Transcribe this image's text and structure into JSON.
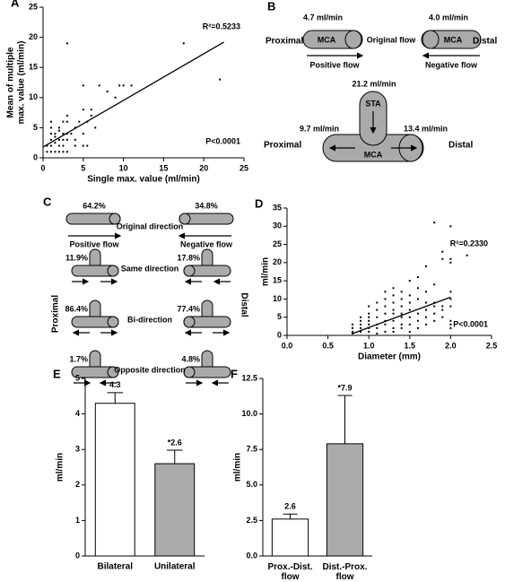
{
  "chart_data": [
    {
      "type": "scatter",
      "panel": "A",
      "xlabel": "Single max. value (ml/min)",
      "ylabel": [
        "Mean of multiple",
        "max. value (ml/min)"
      ],
      "x": [
        0.5,
        1,
        1.5,
        2,
        2.5,
        3,
        0.5,
        1,
        1.5,
        2,
        2.5,
        3,
        1,
        2,
        2.5,
        3,
        3.5,
        1,
        1.5,
        2,
        1,
        2,
        2.5,
        3,
        1,
        4,
        4.5,
        5,
        5.5,
        5,
        5,
        5,
        5.5,
        6,
        6,
        6.5,
        7,
        8,
        9,
        9.5,
        10,
        11,
        3,
        17.5,
        22,
        4,
        3,
        4,
        1.5,
        2.5
      ],
      "y": [
        1,
        1,
        1,
        1,
        1,
        1,
        2,
        2,
        2.5,
        2,
        2,
        3,
        3,
        3,
        4,
        4,
        4,
        4,
        4,
        4.5,
        5,
        5,
        6,
        6,
        6,
        5,
        6,
        2,
        2,
        4,
        8,
        12,
        6,
        8,
        7,
        5,
        12,
        11,
        10,
        12,
        12,
        12,
        19,
        19,
        13,
        2,
        7,
        3,
        3.5,
        3
      ],
      "trend_line": {
        "x": [
          0,
          22.5
        ],
        "y": [
          1.8,
          19.2
        ]
      },
      "annotations": [
        "R²=0.5233",
        "P<0.0001"
      ],
      "xlim": [
        0,
        25
      ],
      "xticks": [
        0,
        5,
        10,
        15,
        20,
        25
      ],
      "ylim": [
        0,
        25
      ],
      "yticks": [
        0,
        5,
        10,
        15,
        20,
        25
      ],
      "color": "#000000"
    },
    {
      "type": "scatter",
      "panel": "D",
      "xlabel": "Diameter (mm)",
      "ylabel": [
        "ml/min"
      ],
      "x": [
        0.8,
        0.8,
        0.8,
        0.8,
        0.9,
        0.9,
        0.9,
        0.9,
        0.9,
        1,
        1,
        1,
        1,
        1,
        1,
        1,
        1.1,
        1.1,
        1.1,
        1.1,
        1.1,
        1.1,
        1.2,
        1.2,
        1.2,
        1.2,
        1.2,
        1.2,
        1.2,
        1.3,
        1.3,
        1.3,
        1.3,
        1.3,
        1.3,
        1.3,
        1.3,
        1.4,
        1.4,
        1.4,
        1.4,
        1.4,
        1.4,
        1.4,
        1.5,
        1.5,
        1.5,
        1.5,
        1.5,
        1.5,
        1.5,
        1.6,
        1.6,
        1.6,
        1.6,
        1.6,
        1.6,
        1.7,
        1.7,
        1.7,
        1.7,
        1.7,
        1.7,
        1.8,
        1.8,
        1.8,
        1.8,
        1.8,
        1.8,
        1.9,
        1.9,
        1.9,
        1.9,
        1.9,
        2,
        2,
        2,
        2,
        2,
        2,
        2,
        2,
        2,
        2.2
      ],
      "y": [
        0.5,
        1,
        2,
        3,
        1,
        2,
        3,
        4,
        5,
        1,
        2,
        3,
        4,
        5,
        6,
        8,
        0.5,
        2,
        3,
        5,
        7,
        9,
        1,
        3,
        4,
        6,
        8,
        10,
        12,
        1,
        2,
        4,
        6,
        7,
        9,
        11,
        13,
        2,
        3,
        5,
        6,
        8,
        10,
        12,
        1,
        3,
        5,
        7,
        9,
        11,
        15,
        2,
        4,
        6,
        10,
        13,
        16,
        3,
        5,
        7,
        9,
        12,
        19,
        4,
        6,
        8,
        9,
        14,
        31,
        5,
        7,
        8,
        21,
        23,
        2,
        3,
        4,
        8,
        10,
        12,
        20,
        21,
        30,
        22
      ],
      "trend_line": {
        "x": [
          0.8,
          2.0
        ],
        "y": [
          0.5,
          10.5
        ]
      },
      "annotations": [
        "R²=0.2330",
        "P<0.0001"
      ],
      "xlim": [
        0,
        2.5
      ],
      "xticks": [
        {
          "value": 0,
          "label": "0.0"
        },
        0.5,
        {
          "value": 1,
          "label": "1.0"
        },
        1.5,
        {
          "value": 2,
          "label": "2.0"
        },
        2.5
      ],
      "ylim": [
        0,
        35
      ],
      "yticks": [
        0,
        5,
        10,
        15,
        20,
        25,
        30,
        35
      ],
      "color": "#000000"
    },
    {
      "type": "bar",
      "panel": "E",
      "ylabel": [
        "ml/min"
      ],
      "categories": [
        "Bilateral",
        "Unilateral"
      ],
      "values": [
        4.3,
        2.6
      ],
      "errors": [
        0.3,
        0.38
      ],
      "value_labels": [
        "4.3",
        "*2.6"
      ],
      "colors": [
        "#ffffff",
        "#aaaaaa"
      ],
      "ylim": [
        0,
        5
      ],
      "yticks": [
        0,
        1,
        2,
        3,
        4,
        5
      ]
    },
    {
      "type": "bar",
      "panel": "F",
      "ylabel": [
        "ml/min"
      ],
      "categories": [
        [
          "Prox.-Dist.",
          "flow"
        ],
        [
          "Dist.-Prox.",
          "flow"
        ]
      ],
      "values": [
        2.6,
        7.9
      ],
      "errors": [
        0.35,
        3.4
      ],
      "value_labels": [
        "2.6",
        "*7.9"
      ],
      "colors": [
        "#ffffff",
        "#aaaaaa"
      ],
      "ylim": [
        0,
        12.5
      ],
      "yticks": [
        {
          "value": 0,
          "label": "0.0"
        },
        2.5,
        {
          "value": 5,
          "label": "5.0"
        },
        7.5,
        {
          "value": 10,
          "label": "10.0"
        },
        12.5
      ]
    }
  ],
  "diagram_b": {
    "panel": "B",
    "left_rate": "4.7 ml/min",
    "right_rate": "4.0 ml/min",
    "proximal": "Proximal",
    "mca_left": "MCA",
    "original_flow": "Original flow",
    "mca_right": "MCA",
    "distal": "Distal",
    "positive_flow": "Positive flow",
    "negative_flow": "Negative flow",
    "sta_rate": "21.2 ml/min",
    "sta": "STA",
    "prox_rate": "9.7 ml/min",
    "dist_rate": "13.4 ml/min",
    "proximal_2": "Proximal",
    "mca_t": "MCA",
    "distal_2": "Distal"
  },
  "diagram_c": {
    "panel": "C",
    "orig_left": "64.2%",
    "orig_right": "34.8%",
    "original_direction": "Original direction",
    "positive_flow": "Positive flow",
    "negative_flow": "Negative flow",
    "same_left": "11.9%",
    "same_right": "17.8%",
    "same_direction": "Same direction",
    "bi_left": "86.4%",
    "bi_right": "77.4%",
    "bi_direction": "Bi-direction",
    "opp_left": "1.7%",
    "opp_right": "4.8%",
    "opposite_direction": "Opposite direction",
    "proximal": "Proximal",
    "distal": "Distal"
  }
}
